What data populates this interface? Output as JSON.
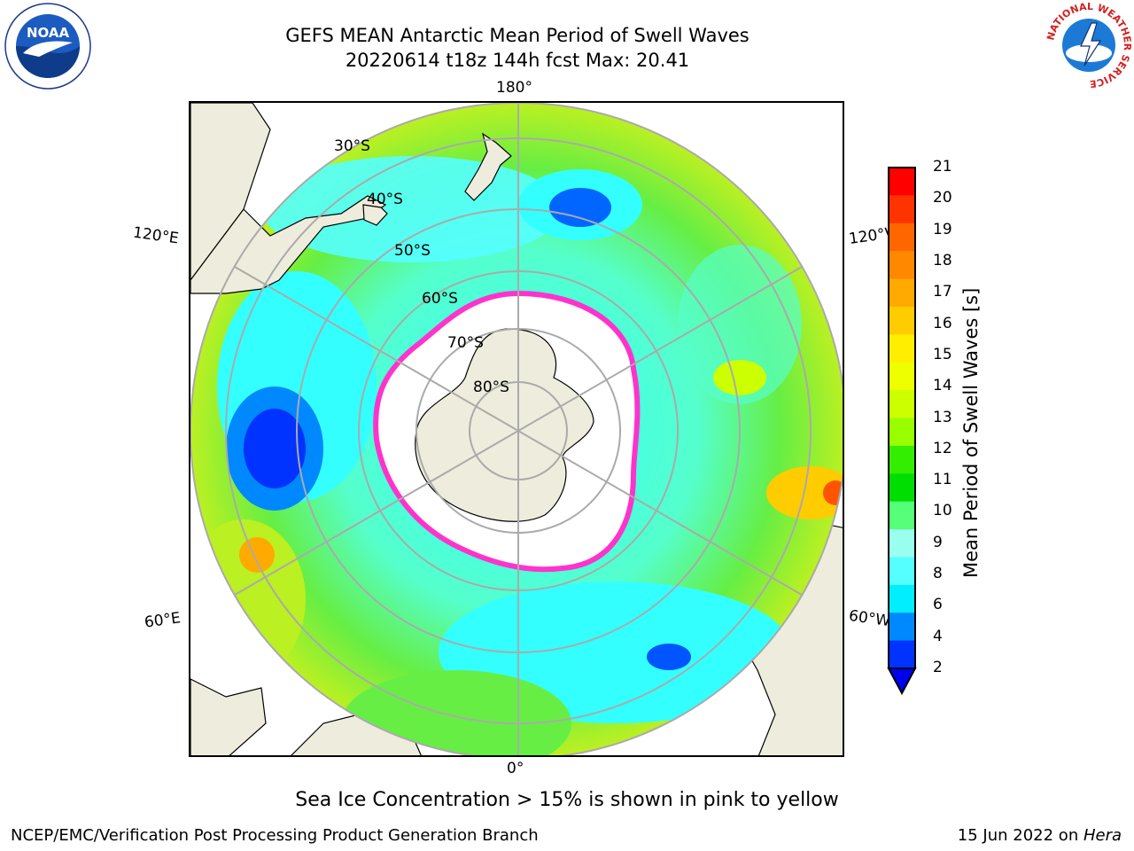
{
  "header": {
    "title_line1": "GEFS MEAN Antarctic Mean Period of Swell Waves",
    "title_line2": "20220614 t18z 144h fcst   Max: 20.41"
  },
  "logos": {
    "noaa_text": "NOAA",
    "nws_text": "NATIONAL WEATHER SERVICE"
  },
  "map": {
    "longitude_labels": [
      "180°",
      "120°E",
      "120°W",
      "60°E",
      "60°W",
      "0°"
    ],
    "latitude_labels": [
      "30°S",
      "40°S",
      "50°S",
      "60°S",
      "70°S",
      "80°S"
    ]
  },
  "colorbar": {
    "title": "Mean Period of Swell Waves [s]",
    "ticks": [
      "21",
      "20",
      "19",
      "18",
      "17",
      "16",
      "15",
      "14",
      "13",
      "12",
      "11",
      "10",
      "9",
      "8",
      "6",
      "4",
      "2"
    ],
    "colors": [
      "#ff0000",
      "#ff3300",
      "#ff6600",
      "#ff8800",
      "#ffaa00",
      "#ffcc00",
      "#ffee00",
      "#eeff00",
      "#ccff00",
      "#99ff00",
      "#33ee00",
      "#00dd00",
      "#55ff77",
      "#99ffee",
      "#55ffff",
      "#00eeff",
      "#0088ff",
      "#0033ff"
    ],
    "under_color": "#0000ee"
  },
  "caption": "Sea Ice Concentration > 15% is shown in pink to yellow",
  "footer": {
    "left": "NCEP/EMC/Verification Post Processing Product Generation Branch",
    "right_prefix": "15 Jun 2022 on ",
    "right_host": "Hera"
  }
}
